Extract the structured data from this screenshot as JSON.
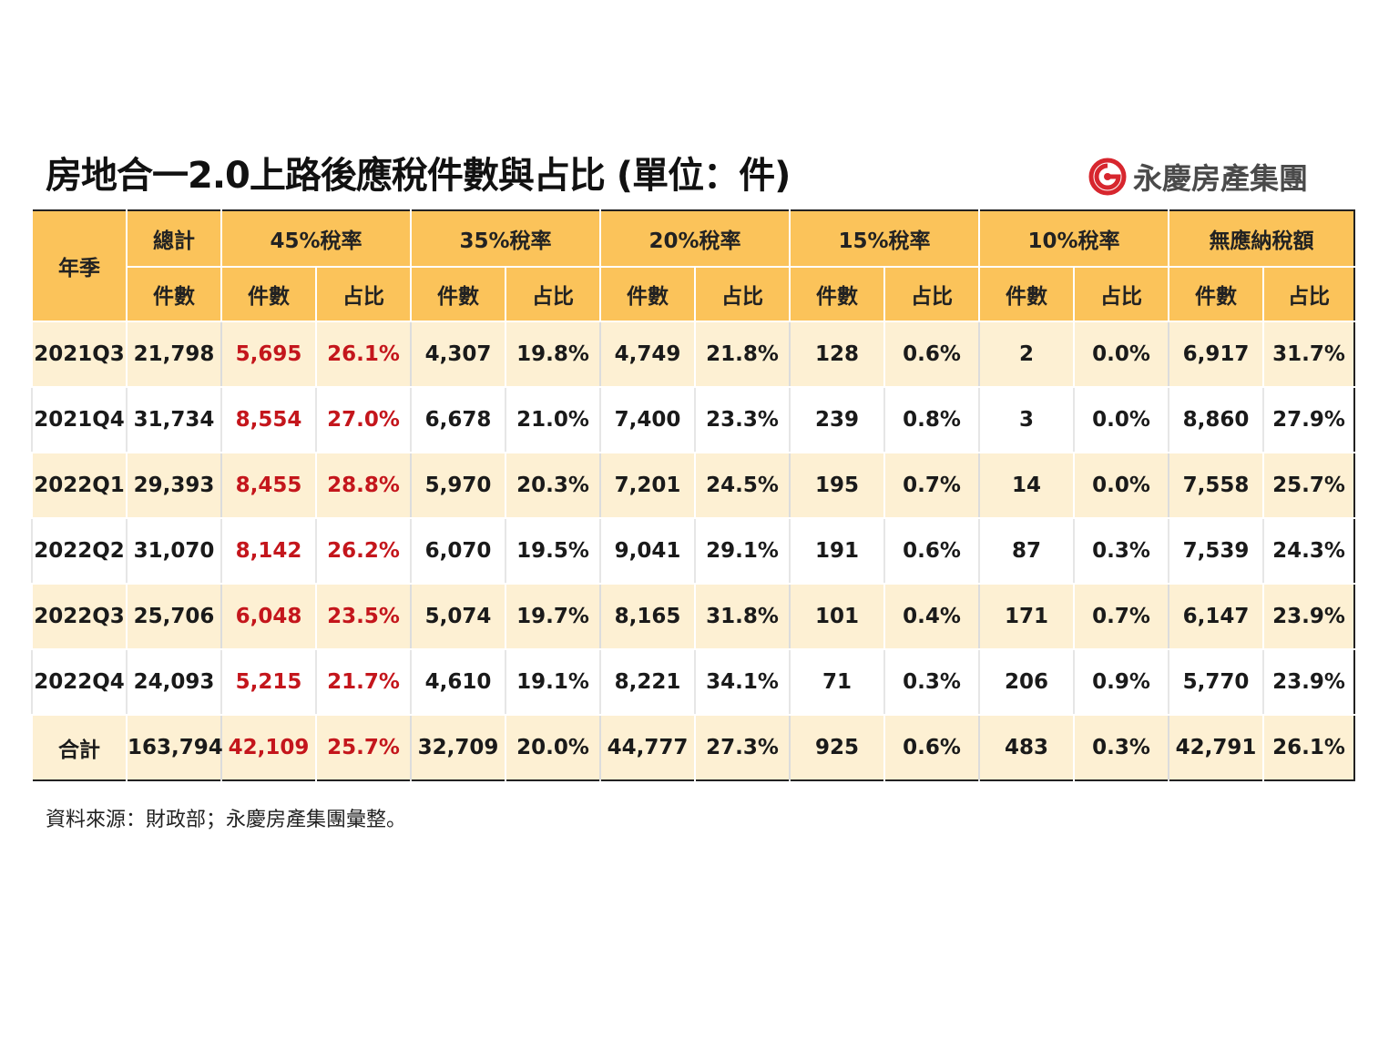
{
  "title": "房地合一2.0上路後應稅件數與占比 (單位：件)",
  "brand": {
    "name": "永慶房產集團",
    "logo_icon": "spiral-logo-icon",
    "logo_color": "#d7262e"
  },
  "colors": {
    "header": "#fbc35a",
    "band": "#fdf0d3",
    "highlight_red": "#c4161c"
  },
  "table": {
    "header": {
      "period": "年季",
      "total": "總計",
      "groups": [
        "45%稅率",
        "35%稅率",
        "20%稅率",
        "15%稅率",
        "10%稅率",
        "無應納稅額"
      ],
      "count": "件數",
      "share": "占比"
    },
    "rows": [
      {
        "period": "2021Q3",
        "total": "21,798",
        "cells": [
          "5,695",
          "26.1%",
          "4,307",
          "19.8%",
          "4,749",
          "21.8%",
          "128",
          "0.6%",
          "2",
          "0.0%",
          "6,917",
          "31.7%"
        ]
      },
      {
        "period": "2021Q4",
        "total": "31,734",
        "cells": [
          "8,554",
          "27.0%",
          "6,678",
          "21.0%",
          "7,400",
          "23.3%",
          "239",
          "0.8%",
          "3",
          "0.0%",
          "8,860",
          "27.9%"
        ]
      },
      {
        "period": "2022Q1",
        "total": "29,393",
        "cells": [
          "8,455",
          "28.8%",
          "5,970",
          "20.3%",
          "7,201",
          "24.5%",
          "195",
          "0.7%",
          "14",
          "0.0%",
          "7,558",
          "25.7%"
        ]
      },
      {
        "period": "2022Q2",
        "total": "31,070",
        "cells": [
          "8,142",
          "26.2%",
          "6,070",
          "19.5%",
          "9,041",
          "29.1%",
          "191",
          "0.6%",
          "87",
          "0.3%",
          "7,539",
          "24.3%"
        ]
      },
      {
        "period": "2022Q3",
        "total": "25,706",
        "cells": [
          "6,048",
          "23.5%",
          "5,074",
          "19.7%",
          "8,165",
          "31.8%",
          "101",
          "0.4%",
          "171",
          "0.7%",
          "6,147",
          "23.9%"
        ]
      },
      {
        "period": "2022Q4",
        "total": "24,093",
        "cells": [
          "5,215",
          "21.7%",
          "4,610",
          "19.1%",
          "8,221",
          "34.1%",
          "71",
          "0.3%",
          "206",
          "0.9%",
          "5,770",
          "23.9%"
        ]
      }
    ],
    "total_row": {
      "period": "合計",
      "total": "163,794",
      "cells": [
        "42,109",
        "25.7%",
        "32,709",
        "20.0%",
        "44,777",
        "27.3%",
        "925",
        "0.6%",
        "483",
        "0.3%",
        "42,791",
        "26.1%"
      ]
    }
  },
  "source": "資料來源：財政部；永慶房產集團彙整。"
}
